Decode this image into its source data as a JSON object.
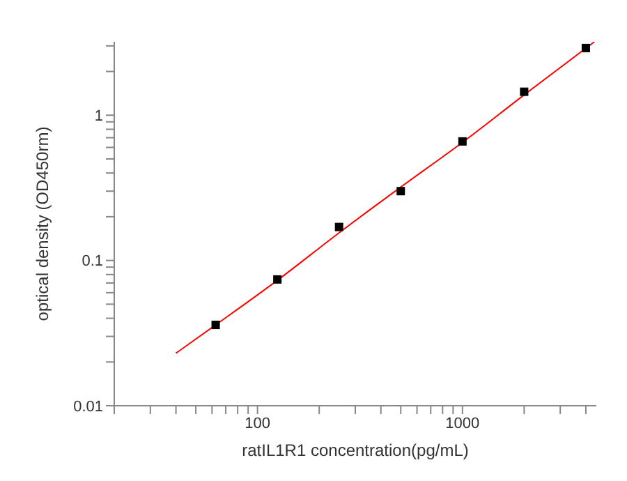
{
  "chart_data": {
    "type": "scatter",
    "xlabel": "ratIL1R1  concentration(pg/mL)",
    "ylabel": "optical density (OD450rm)",
    "log": "xy",
    "marker": "square",
    "xlim": [
      20,
      4500
    ],
    "ylim": [
      0.01,
      3.2
    ],
    "xticks": [
      {
        "value": 20,
        "label": null
      },
      {
        "value": 30,
        "label": null
      },
      {
        "value": 40,
        "label": null
      },
      {
        "value": 50,
        "label": null
      },
      {
        "value": 60,
        "label": null
      },
      {
        "value": 70,
        "label": null
      },
      {
        "value": 80,
        "label": null
      },
      {
        "value": 90,
        "label": null
      },
      100,
      {
        "value": 200,
        "label": null
      },
      {
        "value": 300,
        "label": null
      },
      {
        "value": 400,
        "label": null
      },
      {
        "value": 500,
        "label": null
      },
      {
        "value": 600,
        "label": null
      },
      {
        "value": 700,
        "label": null
      },
      {
        "value": 800,
        "label": null
      },
      {
        "value": 900,
        "label": null
      },
      1000,
      {
        "value": 2000,
        "label": null
      },
      {
        "value": 3000,
        "label": null
      },
      {
        "value": 4000,
        "label": null
      }
    ],
    "yticks": [
      0.01,
      {
        "value": 0.02,
        "label": null
      },
      {
        "value": 0.03,
        "label": null
      },
      {
        "value": 0.04,
        "label": null
      },
      {
        "value": 0.05,
        "label": null
      },
      {
        "value": 0.06,
        "label": null
      },
      {
        "value": 0.07,
        "label": null
      },
      {
        "value": 0.08,
        "label": null
      },
      {
        "value": 0.09,
        "label": null
      },
      0.1,
      {
        "value": 0.2,
        "label": null
      },
      {
        "value": 0.3,
        "label": null
      },
      {
        "value": 0.4,
        "label": null
      },
      {
        "value": 0.5,
        "label": null
      },
      {
        "value": 0.6,
        "label": null
      },
      {
        "value": 0.7,
        "label": null
      },
      {
        "value": 0.8,
        "label": null
      },
      {
        "value": 0.9,
        "label": null
      },
      1,
      {
        "value": 2,
        "label": null
      },
      {
        "value": 3,
        "label": null
      }
    ],
    "series": [
      {
        "color": "#000000",
        "x": [
          62.5,
          125,
          250,
          500,
          1000,
          2000,
          4000
        ],
        "values": [
          0.036,
          0.074,
          0.17,
          0.3,
          0.66,
          1.45,
          2.9
        ]
      },
      {
        "type": "line",
        "color": "#ff0000",
        "marker": "none",
        "x": [
          40,
          62.5,
          125,
          250,
          500,
          1000,
          2000,
          4400
        ],
        "values": [
          0.023,
          0.036,
          0.073,
          0.155,
          0.32,
          0.65,
          1.38,
          3.2
        ]
      }
    ]
  }
}
